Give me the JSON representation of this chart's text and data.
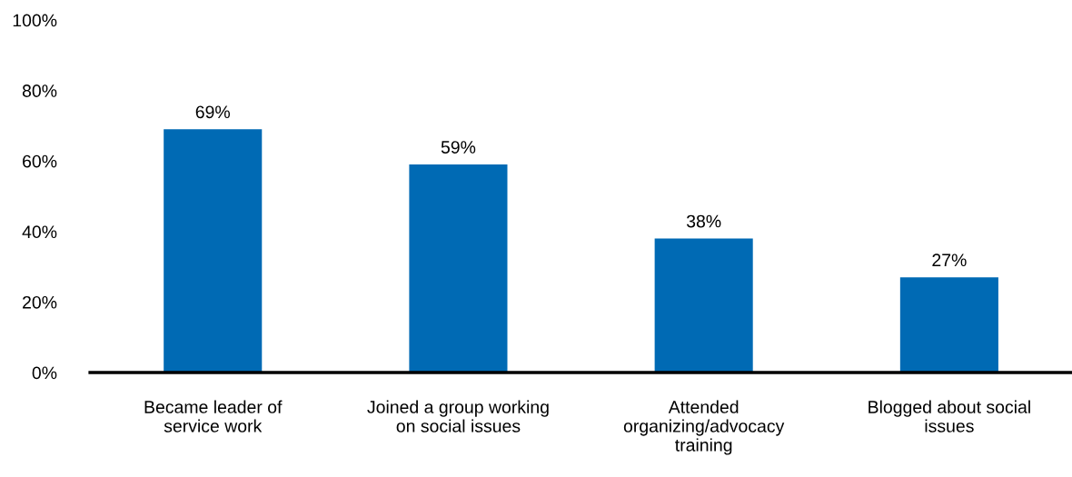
{
  "chart_data": {
    "type": "bar",
    "categories": [
      "Became leader of\nservice work",
      "Joined a group working\non social issues",
      "Attended\norganizing/advocacy\ntraining",
      "Blogged about social\nissues"
    ],
    "values": [
      69,
      59,
      38,
      27
    ],
    "value_labels": [
      "69%",
      "59%",
      "38%",
      "27%"
    ],
    "color": "#006ab4",
    "ylim": [
      0,
      100
    ],
    "yticks": [
      {
        "value": 0,
        "label": "0%"
      },
      {
        "value": 20,
        "label": "20%"
      },
      {
        "value": 40,
        "label": "40%"
      },
      {
        "value": 60,
        "label": "60%"
      },
      {
        "value": 80,
        "label": "80%"
      },
      {
        "value": 100,
        "label": "100%"
      }
    ],
    "grid": false,
    "legend": false
  }
}
